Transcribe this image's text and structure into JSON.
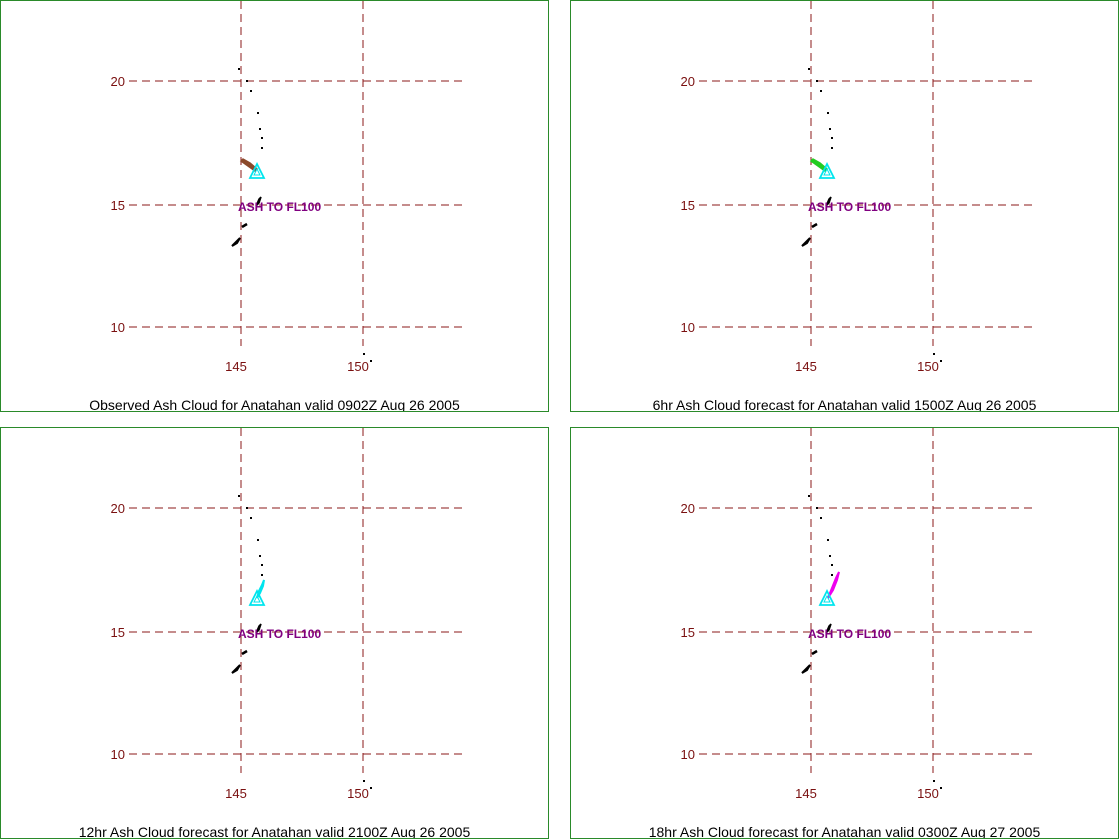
{
  "panels": [
    {
      "caption": "Observed Ash Cloud for Anatahan valid 0902Z Aug 26 2005",
      "ash_label": "ASH TO FL100",
      "ash_color": "#8b4a2b",
      "ash_shape": "plume-northwest"
    },
    {
      "caption": "6hr Ash Cloud forecast for Anatahan valid 1500Z Aug 26 2005",
      "ash_label": "ASH TO FL100",
      "ash_color": "#22cc22",
      "ash_shape": "plume-northwest"
    },
    {
      "caption": "12hr Ash Cloud forecast for Anatahan valid 2100Z Aug 26 2005",
      "ash_label": "ASH TO FL100",
      "ash_color": "#00e5ee",
      "ash_shape": "plume-north"
    },
    {
      "caption": "18hr Ash Cloud forecast for Anatahan valid 0300Z Aug 27 2005",
      "ash_label": "ASH TO FL100",
      "ash_color": "#ee00ee",
      "ash_shape": "plume-northeast"
    }
  ],
  "map": {
    "lat_labels": [
      "20",
      "15",
      "10"
    ],
    "lon_labels": [
      "145",
      "150"
    ],
    "volcano_symbol_color": "#00e5ee",
    "grid_color": "#8b1a1a",
    "volcano_icon": "triangle-volcano-icon"
  }
}
